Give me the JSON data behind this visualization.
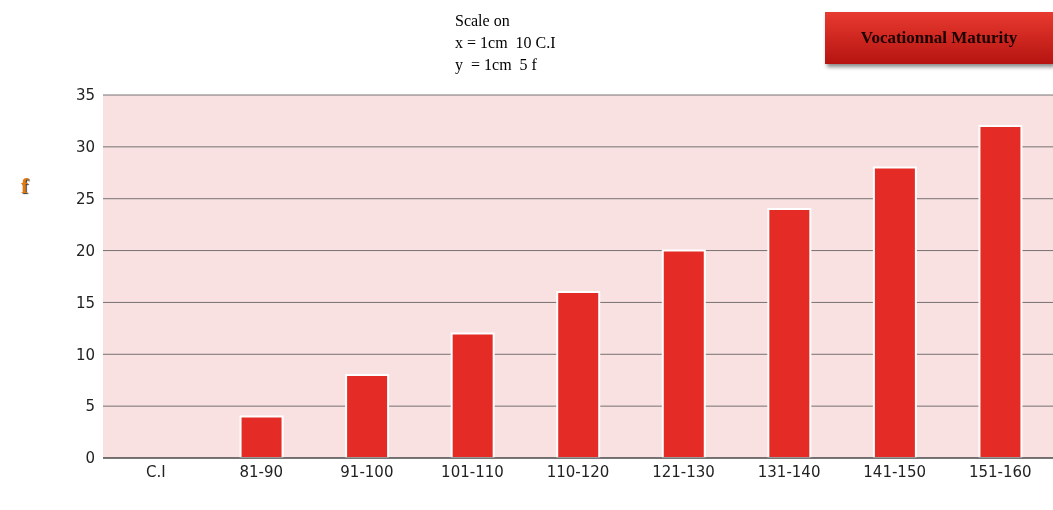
{
  "chart_data": {
    "type": "bar",
    "title": "Vocationnal Maturity",
    "annotations": [
      "Scale on",
      "x = 1cm  10 C.I",
      "y  = 1cm  5 f"
    ],
    "ylabel": "f",
    "categories": [
      "C.I",
      "81-90",
      "91-100",
      "101-110",
      "110-120",
      "121-130",
      "131-140",
      "141-150",
      "151-160"
    ],
    "values": [
      null,
      4,
      8,
      12,
      16,
      20,
      24,
      28,
      32
    ],
    "color": "#e52b25",
    "ylim": [
      0,
      35
    ],
    "yticks": [
      0,
      5,
      10,
      15,
      20,
      25,
      30,
      35
    ],
    "grid": "y"
  }
}
